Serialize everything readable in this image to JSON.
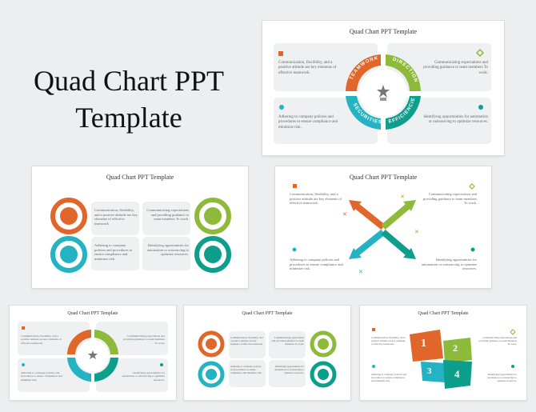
{
  "hero": {
    "line1": "Quad Chart PPT",
    "line2": "Template"
  },
  "slide_title": "Quad Chart PPT Template",
  "quads": {
    "teamwork": "TEAMWORK",
    "direction": "DIRECTION",
    "securities": "SECURITIES",
    "efficiencies": "EFFICIENCIES"
  },
  "texts": {
    "top_left": "Communication, flexibility, and a positive attitude are key elements of effective teamwork.",
    "top_right": "Communicating expectations and providing guidance to team members To work.",
    "bottom_left": "Adhering to company policies and procedures to ensure compliance and minimize risk.",
    "bottom_right": "Identifying opportunities for automation or outsourcing to optimize resources."
  },
  "numbers": [
    "1",
    "2",
    "3",
    "4"
  ],
  "colors": {
    "orange": "#e0662a",
    "green": "#8dba3b",
    "teal": "#23b3c3",
    "dark_teal": "#0e9e8c"
  }
}
